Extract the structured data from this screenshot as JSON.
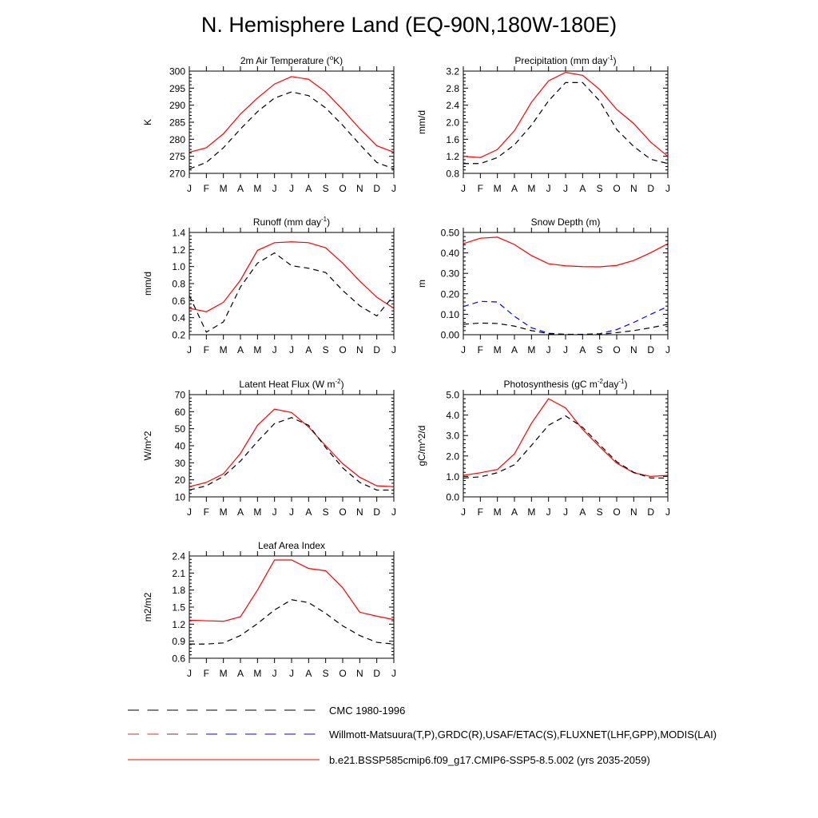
{
  "title": "N. Hemisphere Land (EQ-90N,180W-180E)",
  "colors": {
    "model": "#ff0000",
    "obs": "#000000",
    "obs_alt": "#0000ff"
  },
  "legend": [
    {
      "label": "CMC 1980-1996",
      "style": "dash-black"
    },
    {
      "label": "Willmott-Matsuura(T,P),GRDC(R),USAF/ETAC(S),FLUXNET(LHF,GPP),MODIS(LAI)",
      "style": "dash-mixed"
    },
    {
      "label": "b.e21.BSSP585cmip6.f09_g17.CMIP6-SSP5-8.5.002 (yrs 2035-2059)",
      "style": "solid-red"
    }
  ],
  "chart_data": [
    {
      "type": "line",
      "title": "2m Air Temperature (",
      "title_sup": "o",
      "title_post": "K)",
      "ylabel": "K",
      "categories": [
        "J",
        "F",
        "M",
        "A",
        "M",
        "J",
        "J",
        "A",
        "S",
        "O",
        "N",
        "D",
        "J"
      ],
      "ylim": [
        270,
        300
      ],
      "yticks": [
        270,
        275,
        280,
        285,
        290,
        295,
        300
      ],
      "ytick_labels": [
        "270",
        "275",
        "280",
        "285",
        "290",
        "295",
        "300"
      ],
      "series": [
        {
          "role": "model",
          "values": [
            276.2,
            277.5,
            281.6,
            287.4,
            292.1,
            296.2,
            298.4,
            297.6,
            293.9,
            288.7,
            283.1,
            278.1,
            276.2
          ]
        },
        {
          "role": "obs",
          "values": [
            271.3,
            273.2,
            277.5,
            283.0,
            288.1,
            292.1,
            293.9,
            292.8,
            289.2,
            284.1,
            278.5,
            273.2,
            271.3
          ]
        }
      ]
    },
    {
      "type": "line",
      "title": "Precipitation (mm day",
      "title_sup": "-1",
      "title_post": ")",
      "ylabel": "mm/d",
      "categories": [
        "J",
        "F",
        "M",
        "A",
        "M",
        "J",
        "J",
        "A",
        "S",
        "O",
        "N",
        "D",
        "J"
      ],
      "ylim": [
        0.8,
        3.2
      ],
      "yticks": [
        0.8,
        1.2,
        1.6,
        2.0,
        2.4,
        2.8,
        3.2
      ],
      "ytick_labels": [
        "0.8",
        "1.2",
        "1.6",
        "2.0",
        "2.4",
        "2.8",
        "3.2"
      ],
      "series": [
        {
          "role": "model",
          "values": [
            1.2,
            1.17,
            1.36,
            1.8,
            2.47,
            2.97,
            3.17,
            3.1,
            2.77,
            2.3,
            1.97,
            1.53,
            1.2
          ]
        },
        {
          "role": "obs",
          "values": [
            1.03,
            1.03,
            1.17,
            1.47,
            1.93,
            2.5,
            2.93,
            2.93,
            2.5,
            1.83,
            1.43,
            1.13,
            1.03
          ]
        }
      ]
    },
    {
      "type": "line",
      "title": "Runoff (mm day",
      "title_sup": "-1",
      "title_post": ")",
      "ylabel": "mm/d",
      "categories": [
        "J",
        "F",
        "M",
        "A",
        "M",
        "J",
        "J",
        "A",
        "S",
        "O",
        "N",
        "D",
        "J"
      ],
      "ylim": [
        0.2,
        1.4
      ],
      "yticks": [
        0.2,
        0.4,
        0.6,
        0.8,
        1.0,
        1.2,
        1.4
      ],
      "ytick_labels": [
        "0.2",
        "0.4",
        "0.6",
        "0.8",
        "1.0",
        "1.2",
        "1.4"
      ],
      "series": [
        {
          "role": "model",
          "values": [
            0.51,
            0.47,
            0.58,
            0.84,
            1.19,
            1.28,
            1.29,
            1.28,
            1.22,
            1.04,
            0.83,
            0.64,
            0.51
          ]
        },
        {
          "role": "obs",
          "values": [
            0.66,
            0.23,
            0.35,
            0.76,
            1.04,
            1.16,
            1.01,
            0.98,
            0.93,
            0.72,
            0.54,
            0.42,
            0.66
          ]
        }
      ]
    },
    {
      "type": "line",
      "title": "Snow Depth (m)",
      "title_sup": "",
      "title_post": "",
      "ylabel": "m",
      "categories": [
        "J",
        "F",
        "M",
        "A",
        "M",
        "J",
        "J",
        "A",
        "S",
        "O",
        "N",
        "D",
        "J"
      ],
      "ylim": [
        0.0,
        0.5
      ],
      "yticks": [
        0.0,
        0.1,
        0.2,
        0.3,
        0.4,
        0.5
      ],
      "ytick_labels": [
        "0.00",
        "0.10",
        "0.20",
        "0.30",
        "0.40",
        "0.50"
      ],
      "series": [
        {
          "role": "model",
          "values": [
            0.445,
            0.472,
            0.477,
            0.441,
            0.387,
            0.347,
            0.337,
            0.333,
            0.332,
            0.339,
            0.363,
            0.401,
            0.445
          ]
        },
        {
          "role": "obs_alt",
          "values": [
            0.138,
            0.163,
            0.16,
            0.09,
            0.034,
            0.007,
            0.002,
            0.002,
            0.005,
            0.025,
            0.06,
            0.1,
            0.138
          ]
        },
        {
          "role": "obs",
          "values": [
            0.051,
            0.057,
            0.055,
            0.042,
            0.02,
            0.005,
            0.001,
            0.001,
            0.002,
            0.01,
            0.02,
            0.034,
            0.051
          ]
        }
      ]
    },
    {
      "type": "line",
      "title": "Latent Heat Flux (W m",
      "title_sup": "-2",
      "title_post": ")",
      "ylabel": "W/m^2",
      "categories": [
        "J",
        "F",
        "M",
        "A",
        "M",
        "J",
        "J",
        "A",
        "S",
        "O",
        "N",
        "D",
        "J"
      ],
      "ylim": [
        10,
        70
      ],
      "yticks": [
        10,
        20,
        30,
        40,
        50,
        60,
        70
      ],
      "ytick_labels": [
        "10",
        "20",
        "30",
        "40",
        "50",
        "60",
        "70"
      ],
      "series": [
        {
          "role": "model",
          "values": [
            16,
            18.5,
            23.5,
            35.5,
            52,
            61.5,
            59.5,
            51,
            40,
            29.5,
            21.5,
            16.5,
            16
          ]
        },
        {
          "role": "obs",
          "values": [
            14,
            16.5,
            22,
            31,
            42.5,
            53,
            56.5,
            52,
            39,
            27,
            18.5,
            14,
            14
          ]
        }
      ]
    },
    {
      "type": "line",
      "title": "Photosynthesis (gC m",
      "title_sup": "-2",
      "title_post": "day",
      "title_sup2": "-1",
      "title_post2": ")",
      "ylabel": "gC/m^2/d",
      "categories": [
        "J",
        "F",
        "M",
        "A",
        "M",
        "J",
        "J",
        "A",
        "S",
        "O",
        "N",
        "D",
        "J"
      ],
      "ylim": [
        0.0,
        5.0
      ],
      "yticks": [
        0.0,
        1.0,
        2.0,
        3.0,
        4.0,
        5.0
      ],
      "ytick_labels": [
        "0.0",
        "1.0",
        "2.0",
        "3.0",
        "4.0",
        "5.0"
      ],
      "series": [
        {
          "role": "model",
          "values": [
            1.05,
            1.18,
            1.34,
            2.1,
            3.6,
            4.8,
            4.35,
            3.3,
            2.45,
            1.65,
            1.18,
            1.0,
            1.05
          ]
        },
        {
          "role": "obs",
          "values": [
            0.92,
            0.98,
            1.18,
            1.57,
            2.52,
            3.5,
            3.96,
            3.4,
            2.55,
            1.72,
            1.2,
            0.92,
            0.92
          ]
        }
      ]
    },
    {
      "type": "line",
      "title": "Leaf Area Index",
      "title_sup": "",
      "title_post": "",
      "ylabel": "m2/m2",
      "categories": [
        "J",
        "F",
        "M",
        "A",
        "M",
        "J",
        "J",
        "A",
        "S",
        "O",
        "N",
        "D",
        "J"
      ],
      "ylim": [
        0.6,
        2.4
      ],
      "yticks": [
        0.6,
        0.9,
        1.2,
        1.5,
        1.8,
        2.1,
        2.4
      ],
      "ytick_labels": [
        "0.6",
        "0.9",
        "1.2",
        "1.5",
        "1.8",
        "2.1",
        "2.4"
      ],
      "series": [
        {
          "role": "model",
          "values": [
            1.27,
            1.26,
            1.25,
            1.33,
            1.8,
            2.33,
            2.33,
            2.18,
            2.14,
            1.84,
            1.41,
            1.34,
            1.28
          ]
        },
        {
          "role": "obs",
          "values": [
            0.85,
            0.85,
            0.87,
            1.0,
            1.21,
            1.45,
            1.63,
            1.58,
            1.39,
            1.17,
            1.0,
            0.88,
            0.85
          ]
        }
      ]
    }
  ]
}
